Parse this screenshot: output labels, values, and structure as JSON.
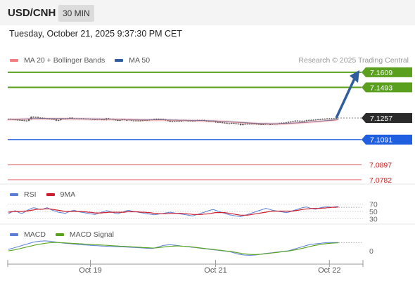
{
  "header": {
    "symbol": "USD/CNH",
    "timeframe": "30 MIN"
  },
  "datetime": "Tuesday, October 21, 2025 9:37:30 PM CET",
  "credit": "Research © 2025 Trading Central",
  "colors": {
    "candle": "#555555",
    "ma20": "#f08080",
    "bollinger_band": "#fadadd",
    "ma50": "#2f5d9e",
    "target": "#5aa01e",
    "current": "#2b2b2b",
    "pivot": "#1f5fe0",
    "support": "#e07070",
    "support_text": "#cc2020",
    "rsi": "#5b7fd4",
    "rsi_ma": "#cc1f2e",
    "macd": "#5b7fd4",
    "macd_signal": "#58a31c",
    "arrow": "#2f5d9e"
  },
  "chart_data": [
    {
      "type": "line",
      "name": "price",
      "legend": [
        {
          "label": "MA 20 + Bollinger Bands",
          "color": "#f08080"
        },
        {
          "label": "MA 50",
          "color": "#2f5d9e"
        }
      ],
      "ylim": [
        7.076,
        7.163
      ],
      "levels": [
        {
          "label": "7.1609",
          "value": 7.1609,
          "kind": "target"
        },
        {
          "label": "7.1493",
          "value": 7.1493,
          "kind": "target"
        },
        {
          "label": "7.1257",
          "value": 7.1257,
          "kind": "current"
        },
        {
          "label": "7.1091",
          "value": 7.1091,
          "kind": "pivot"
        },
        {
          "label": "7.0897",
          "value": 7.0897,
          "kind": "support"
        },
        {
          "label": "7.0782",
          "value": 7.0782,
          "kind": "support"
        }
      ],
      "close": [
        7.1249,
        7.1247,
        7.1246,
        7.1244,
        7.1243,
        7.1241,
        7.1239,
        7.1237,
        7.1236,
        7.1248,
        7.1266,
        7.1263,
        7.1265,
        7.1259,
        7.1258,
        7.1256,
        7.1253,
        7.1252,
        7.125,
        7.1249,
        7.1247,
        7.1237,
        7.1241,
        7.1249,
        7.1252,
        7.1249,
        7.1254,
        7.1259,
        7.1254,
        7.1254,
        7.1253,
        7.125,
        7.1253,
        7.1249,
        7.1251,
        7.125,
        7.1248,
        7.1248,
        7.1244,
        7.1249,
        7.1246,
        7.1247,
        7.1243,
        7.1254,
        7.1249,
        7.125,
        7.1245,
        7.1241,
        7.1238,
        7.1241,
        7.1248,
        7.1242,
        7.1241,
        7.1245,
        7.1238,
        7.1238,
        7.1238,
        7.1238,
        7.1235,
        7.1241,
        7.124,
        7.1239,
        7.1244,
        7.1245,
        7.1249,
        7.125,
        7.1249,
        7.1249,
        7.1246,
        7.1239,
        7.1237,
        7.1229,
        7.1233,
        7.1233,
        7.1236,
        7.1232,
        7.1236,
        7.124,
        7.1236,
        7.1237,
        7.1236,
        7.1234,
        7.1237,
        7.124,
        7.1237,
        7.1241,
        7.1236,
        7.1232,
        7.1233,
        7.1233,
        7.1232,
        7.1225,
        7.1226,
        7.1223,
        7.1221,
        7.122,
        7.1216,
        7.1216,
        7.1219,
        7.1216,
        7.1213,
        7.1213,
        7.1203,
        7.1211,
        7.1212,
        7.1213,
        7.1213,
        7.1214,
        7.1213,
        7.1211,
        7.1209,
        7.1209,
        7.1208,
        7.1213,
        7.1209,
        7.1208,
        7.1212,
        7.1212,
        7.1212,
        7.1217,
        7.1219,
        7.122,
        7.1223,
        7.1227,
        7.1229,
        7.1232,
        7.1237,
        7.1236,
        7.1233,
        7.1235,
        7.1234,
        7.124,
        7.1242,
        7.1241,
        7.1243,
        7.1245,
        7.1247,
        7.1248,
        7.125,
        7.1251,
        7.1253,
        7.1253,
        7.1252,
        7.1254,
        7.1257
      ],
      "ma20": [
        7.1245,
        7.1245,
        7.1246,
        7.1246,
        7.1246,
        7.1247,
        7.1248,
        7.1248,
        7.1249,
        7.125,
        7.1251,
        7.1251,
        7.1252,
        7.1252,
        7.1252,
        7.1252,
        7.1252,
        7.1252,
        7.1252,
        7.1252,
        7.1252,
        7.1252,
        7.1252,
        7.1252,
        7.1251,
        7.1251,
        7.1251,
        7.1251,
        7.1251,
        7.125,
        7.125,
        7.125,
        7.125,
        7.125,
        7.125,
        7.1249,
        7.1249,
        7.1249,
        7.1249,
        7.1248,
        7.1248,
        7.1248,
        7.1248,
        7.1248,
        7.1247,
        7.1247,
        7.1246,
        7.1246,
        7.1246,
        7.1245,
        7.1245,
        7.1245,
        7.1244,
        7.1244,
        7.1244,
        7.1243,
        7.1243,
        7.1243,
        7.1242,
        7.1242,
        7.1242,
        7.1242,
        7.1242,
        7.1242,
        7.1242,
        7.1242,
        7.1242,
        7.1242,
        7.1242,
        7.1242,
        7.1241,
        7.1241,
        7.124,
        7.124,
        7.124,
        7.1239,
        7.1239,
        7.1239,
        7.1238,
        7.1238,
        7.1238,
        7.1237,
        7.1237,
        7.1237,
        7.1236,
        7.1236,
        7.1236,
        7.1235,
        7.1235,
        7.1234,
        7.1234,
        7.1233,
        7.1232,
        7.1231,
        7.123,
        7.1229,
        7.1228,
        7.1227,
        7.1226,
        7.1225,
        7.1224,
        7.1223,
        7.1222,
        7.1221,
        7.122,
        7.1219,
        7.1218,
        7.1217,
        7.1216,
        7.1215,
        7.1214,
        7.1214,
        7.1213,
        7.1213,
        7.1212,
        7.1212,
        7.1212,
        7.1212,
        7.1212,
        7.1212,
        7.1213,
        7.1213,
        7.1214,
        7.1215,
        7.1216,
        7.1217,
        7.1218,
        7.1219,
        7.122,
        7.1221,
        7.1222,
        7.1223,
        7.1225,
        7.1226,
        7.1227,
        7.1229,
        7.123,
        7.1232,
        7.1233,
        7.1235,
        7.1236,
        7.1238,
        7.1239,
        7.124,
        7.1242,
        7.1243
      ],
      "arrow": {
        "from": 7.1257,
        "to": 7.1609
      }
    },
    {
      "type": "line",
      "name": "rsi",
      "legend": [
        {
          "label": "RSI",
          "color": "#5b7fd4"
        },
        {
          "label": "9MA",
          "color": "#cc1f2e"
        }
      ],
      "ylim": [
        20,
        80
      ],
      "ticks": [
        {
          "label": "70",
          "value": 70
        },
        {
          "label": "50",
          "value": 50
        },
        {
          "label": "30",
          "value": 30
        }
      ],
      "rsi": [
        44,
        47,
        50,
        52,
        49,
        46,
        45,
        48,
        52,
        55,
        58,
        60,
        59,
        57,
        55,
        56,
        58,
        60,
        57,
        54,
        52,
        50,
        48,
        47,
        46,
        45,
        48,
        50,
        52,
        53,
        51,
        49,
        48,
        47,
        46,
        45,
        44,
        43,
        42,
        44,
        46,
        48,
        50,
        52,
        51,
        49,
        47,
        45,
        44,
        46,
        48,
        50,
        52,
        53,
        51,
        50,
        49,
        48,
        47,
        46,
        45,
        44,
        43,
        42,
        41,
        42,
        43,
        44,
        45,
        46,
        47,
        48,
        47,
        46,
        45,
        44,
        43,
        42,
        41,
        40,
        39,
        38,
        40,
        42,
        44,
        46,
        48,
        50,
        52,
        54,
        55,
        53,
        51,
        49,
        47,
        45,
        43,
        41,
        40,
        39,
        38,
        37,
        36,
        38,
        40,
        42,
        44,
        46,
        48,
        50,
        52,
        54,
        56,
        58,
        57,
        55,
        53,
        52,
        51,
        50,
        49,
        48,
        47,
        48,
        50,
        52,
        54,
        56,
        58,
        60,
        61,
        62,
        60,
        58,
        57,
        56,
        58,
        60,
        61,
        62,
        63,
        62,
        61,
        62,
        63,
        63
      ],
      "rsi_ma": [
        48,
        49,
        50,
        50,
        50,
        50,
        50,
        51,
        51,
        52,
        53,
        54,
        55,
        56,
        56,
        56,
        57,
        57,
        57,
        56,
        55,
        54,
        53,
        52,
        51,
        50,
        50,
        50,
        50,
        50,
        50,
        50,
        50,
        49,
        49,
        48,
        48,
        47,
        46,
        46,
        46,
        46,
        47,
        47,
        48,
        48,
        48,
        48,
        48,
        48,
        48,
        48,
        49,
        49,
        49,
        49,
        49,
        49,
        48,
        48,
        48,
        47,
        47,
        46,
        45,
        45,
        44,
        44,
        44,
        44,
        44,
        45,
        45,
        45,
        45,
        45,
        45,
        44,
        44,
        43,
        43,
        42,
        42,
        42,
        42,
        42,
        43,
        43,
        44,
        45,
        46,
        47,
        47,
        47,
        47,
        47,
        46,
        45,
        44,
        43,
        42,
        41,
        40,
        40,
        40,
        40,
        41,
        42,
        43,
        44,
        45,
        46,
        47,
        48,
        49,
        50,
        51,
        51,
        51,
        51,
        51,
        51,
        51,
        51,
        51,
        51,
        52,
        53,
        54,
        55,
        56,
        57,
        57,
        58,
        58,
        58,
        58,
        58,
        59,
        59,
        60,
        60,
        61,
        61,
        61,
        62
      ],
      "dotted_extension": true
    },
    {
      "type": "line",
      "name": "macd",
      "legend": [
        {
          "label": "MACD",
          "color": "#5b7fd4"
        },
        {
          "label": "MACD Signal",
          "color": "#58a31c"
        }
      ],
      "ylim": [
        -1,
        1
      ],
      "ticks": [
        {
          "label": "0",
          "value": 0
        }
      ],
      "macd": [
        0.1,
        0.15,
        0.2,
        0.25,
        0.3,
        0.35,
        0.4,
        0.45,
        0.5,
        0.55,
        0.6,
        0.65,
        0.68,
        0.7,
        0.72,
        0.73,
        0.74,
        0.73,
        0.72,
        0.7,
        0.68,
        0.65,
        0.62,
        0.6,
        0.58,
        0.56,
        0.55,
        0.54,
        0.52,
        0.5,
        0.48,
        0.46,
        0.45,
        0.44,
        0.43,
        0.42,
        0.41,
        0.4,
        0.39,
        0.38,
        0.37,
        0.36,
        0.35,
        0.34,
        0.33,
        0.32,
        0.32,
        0.31,
        0.3,
        0.3,
        0.3,
        0.29,
        0.28,
        0.27,
        0.26,
        0.25,
        0.24,
        0.23,
        0.22,
        0.21,
        0.2,
        0.19,
        0.18,
        0.18,
        0.2,
        0.25,
        0.3,
        0.35,
        0.4,
        0.42,
        0.44,
        0.45,
        0.44,
        0.42,
        0.4,
        0.38,
        0.36,
        0.34,
        0.32,
        0.3,
        0.28,
        0.26,
        0.24,
        0.22,
        0.2,
        0.18,
        0.16,
        0.14,
        0.12,
        0.1,
        0.08,
        0.06,
        0.04,
        0.02,
        0.0,
        -0.02,
        -0.04,
        -0.06,
        -0.1,
        -0.15,
        -0.2,
        -0.25,
        -0.28,
        -0.3,
        -0.32,
        -0.33,
        -0.34,
        -0.33,
        -0.32,
        -0.3,
        -0.28,
        -0.25,
        -0.22,
        -0.2,
        -0.18,
        -0.16,
        -0.14,
        -0.12,
        -0.1,
        -0.08,
        -0.06,
        -0.04,
        -0.02,
        0.0,
        0.05,
        0.1,
        0.15,
        0.2,
        0.25,
        0.3,
        0.35,
        0.4,
        0.45,
        0.48,
        0.5,
        0.52,
        0.54,
        0.56,
        0.58,
        0.6,
        0.61,
        0.62,
        0.62,
        0.62,
        0.62,
        0.62
      ],
      "macd_signal": [
        0.0,
        0.02,
        0.05,
        0.08,
        0.12,
        0.16,
        0.2,
        0.24,
        0.28,
        0.32,
        0.36,
        0.4,
        0.44,
        0.47,
        0.5,
        0.53,
        0.56,
        0.58,
        0.6,
        0.61,
        0.62,
        0.62,
        0.62,
        0.61,
        0.6,
        0.59,
        0.58,
        0.57,
        0.56,
        0.55,
        0.54,
        0.53,
        0.52,
        0.51,
        0.5,
        0.49,
        0.48,
        0.47,
        0.46,
        0.45,
        0.44,
        0.43,
        0.42,
        0.41,
        0.4,
        0.39,
        0.38,
        0.37,
        0.36,
        0.35,
        0.34,
        0.33,
        0.32,
        0.31,
        0.3,
        0.29,
        0.28,
        0.27,
        0.26,
        0.25,
        0.24,
        0.23,
        0.22,
        0.21,
        0.21,
        0.22,
        0.24,
        0.26,
        0.28,
        0.3,
        0.32,
        0.34,
        0.35,
        0.36,
        0.36,
        0.36,
        0.35,
        0.34,
        0.33,
        0.32,
        0.3,
        0.28,
        0.26,
        0.24,
        0.22,
        0.2,
        0.18,
        0.16,
        0.14,
        0.12,
        0.1,
        0.08,
        0.06,
        0.04,
        0.02,
        0.0,
        -0.02,
        -0.04,
        -0.06,
        -0.09,
        -0.12,
        -0.15,
        -0.18,
        -0.21,
        -0.23,
        -0.25,
        -0.27,
        -0.28,
        -0.28,
        -0.28,
        -0.27,
        -0.26,
        -0.24,
        -0.22,
        -0.2,
        -0.18,
        -0.16,
        -0.14,
        -0.12,
        -0.1,
        -0.08,
        -0.06,
        -0.04,
        -0.02,
        0.01,
        0.04,
        0.07,
        0.1,
        0.14,
        0.18,
        0.22,
        0.26,
        0.3,
        0.34,
        0.38,
        0.41,
        0.44,
        0.47,
        0.5,
        0.52,
        0.54,
        0.56,
        0.57,
        0.58,
        0.59,
        0.6
      ],
      "dotted_extension": true
    }
  ],
  "x_axis": {
    "ticks": [
      {
        "label": "Oct 19",
        "index": 36
      },
      {
        "label": "Oct 21",
        "index": 91
      },
      {
        "label": "Oct 22",
        "index": 141
      }
    ]
  }
}
